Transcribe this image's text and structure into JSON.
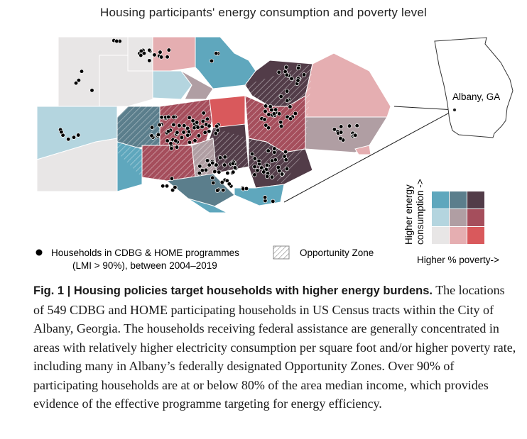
{
  "title": "Housing participants' energy consumption and poverty level",
  "inset": {
    "label": "Albany, GA"
  },
  "legend": {
    "households_line1": "Households in CDBG & HOME programmes",
    "households_line2": "(LMI > 90%), between 2004–2019",
    "opportunity_zone": "Opportunity Zone",
    "y_axis_line1": "Higher energy",
    "y_axis_line2": "consumption ->",
    "x_axis": "Higher % poverty->"
  },
  "bivariate_colors": {
    "low_energy_low_poverty": "#e8e6e6",
    "low_energy_mid_poverty": "#e5aeb1",
    "low_energy_high_poverty": "#d9595c",
    "mid_energy_low_poverty": "#b4d5df",
    "mid_energy_mid_poverty": "#b09ea3",
    "mid_energy_high_poverty": "#a54e5c",
    "high_energy_low_poverty": "#5fa7bd",
    "high_energy_mid_poverty": "#5b7e8c",
    "high_energy_high_poverty": "#523c48"
  },
  "caption": {
    "fig_label": "Fig. 1 | Housing policies target households with higher energy burdens.",
    "text": " The locations of 549 CDBG and HOME participating households in US Census tracts within the City of Albany, Georgia. The households receiving federal assistance are generally concentrated in areas with relatively higher electricity consumption per square foot and/or higher poverty rate, including many in Albany’s federally designated Opportunity Zones. Over 90% of participating households are at or below 80% of the area median income, which provides evidence of the effective programme targeting for energy efficiency."
  }
}
